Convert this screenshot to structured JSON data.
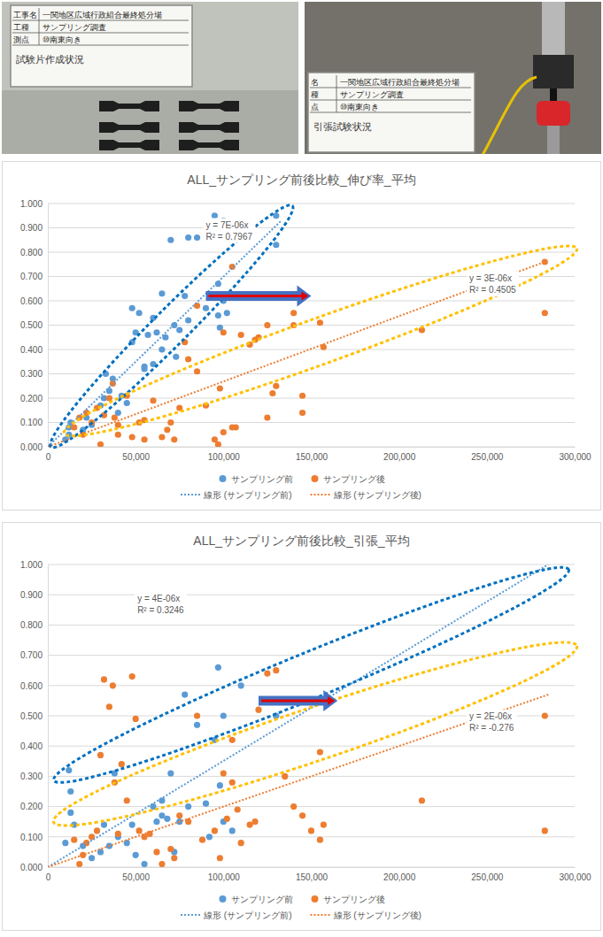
{
  "photos": [
    {
      "board": [
        {
          "label": "工事名",
          "value": "一関地区広域行政組合最終処分場"
        },
        {
          "label": "工種",
          "value": "サンプリング調査"
        },
        {
          "label": "測点",
          "value": "⑩南東向き"
        }
      ],
      "caption": "試験片作成状況"
    },
    {
      "board": [
        {
          "label": "名",
          "value": "一関地区広域行政組合最終処分場"
        },
        {
          "label": "種",
          "value": "サンプリング調査"
        },
        {
          "label": "点",
          "value": "⑩南東向き"
        }
      ],
      "caption": "引張試験状況"
    }
  ],
  "chart_data": [
    {
      "type": "scatter",
      "title": "ALL_サンプリング前後比較_伸び率_平均",
      "xlim": [
        0,
        300000
      ],
      "xticks": [
        0,
        {
          "value": 50000,
          "label": "50,000"
        },
        {
          "value": 100000,
          "label": "100,000"
        },
        {
          "value": 150000,
          "label": "150,000"
        },
        {
          "value": 200000,
          "label": "200,000"
        },
        {
          "value": 250000,
          "label": "250,000"
        },
        {
          "value": 300000,
          "label": "300,000"
        }
      ],
      "ylim": [
        0,
        1
      ],
      "yticks": [
        {
          "value": 0,
          "label": "0.000"
        },
        {
          "value": 0.1,
          "label": "0.100"
        },
        {
          "value": 0.2,
          "label": "0.200"
        },
        {
          "value": 0.3,
          "label": "0.300"
        },
        {
          "value": 0.4,
          "label": "0.400"
        },
        {
          "value": 0.5,
          "label": "0.500"
        },
        {
          "value": 0.6,
          "label": "0.600"
        },
        {
          "value": 0.7,
          "label": "0.700"
        },
        {
          "value": 0.8,
          "label": "0.800"
        },
        {
          "value": 0.9,
          "label": "0.900"
        },
        {
          "value": 1,
          "label": "1.000"
        }
      ],
      "grid": "y",
      "legend": "bottom",
      "series": [
        {
          "name": "サンプリング前",
          "type": "scatter",
          "marker": "circle",
          "color": "#5B9BD5",
          "x": [
            10000,
            12000,
            12000,
            13000,
            20000,
            22000,
            25000,
            30000,
            32000,
            33000,
            35000,
            37000,
            40000,
            42000,
            45000,
            48000,
            48000,
            50000,
            52000,
            55000,
            55000,
            57000,
            60000,
            60000,
            62000,
            65000,
            65000,
            67000,
            70000,
            72000,
            73000,
            75000,
            78000,
            80000,
            80000,
            85000,
            90000,
            92000,
            95000,
            97000,
            97000,
            98000,
            100000,
            100000,
            102000,
            105000,
            110000,
            130000,
            130000
          ],
          "values": [
            0.03,
            0.05,
            0.08,
            0.1,
            0.07,
            0.12,
            0.09,
            0.17,
            0.2,
            0.3,
            0.23,
            0.28,
            0.14,
            0.21,
            0.18,
            0.43,
            0.57,
            0.47,
            0.55,
            0.33,
            0.32,
            0.46,
            0.53,
            0.34,
            0.47,
            0.63,
            0.4,
            0.45,
            0.85,
            0.5,
            0.37,
            0.48,
            0.62,
            0.52,
            0.86,
            0.86,
            0.57,
            0.91,
            0.95,
            0.67,
            0.54,
            0.49,
            0.93,
            0.6,
            0.55,
            0.9,
            0.88,
            0.95,
            0.83
          ]
        },
        {
          "name": "サンプリング後",
          "type": "scatter",
          "marker": "circle",
          "color": "#ED7D31",
          "x": [
            15000,
            18000,
            20000,
            22000,
            25000,
            28000,
            30000,
            32000,
            35000,
            37000,
            38000,
            40000,
            40000,
            45000,
            48000,
            52000,
            55000,
            55000,
            60000,
            65000,
            68000,
            70000,
            72000,
            75000,
            78000,
            80000,
            85000,
            85000,
            90000,
            95000,
            97000,
            98000,
            100000,
            100000,
            105000,
            105000,
            107000,
            110000,
            115000,
            118000,
            120000,
            125000,
            125000,
            128000,
            130000,
            140000,
            140000,
            145000,
            145000,
            155000,
            157000,
            213000,
            283000,
            283000
          ],
          "values": [
            0.08,
            0.12,
            0.05,
            0.14,
            0.1,
            0.16,
            0.01,
            0.13,
            0.2,
            0.26,
            0.12,
            0.09,
            0.05,
            0.21,
            0.04,
            0.1,
            0.11,
            0.03,
            0.19,
            0.04,
            0.07,
            0.1,
            0.03,
            0.16,
            0.43,
            0.36,
            0.31,
            0.58,
            0.17,
            0.03,
            0.01,
            0.24,
            0.47,
            0.06,
            0.08,
            0.74,
            0.08,
            0.46,
            0.42,
            0.44,
            0.45,
            0.12,
            0.5,
            0.22,
            0.25,
            0.5,
            0.55,
            0.14,
            0.21,
            0.51,
            0.41,
            0.48,
            0.76,
            0.55
          ]
        },
        {
          "name": "線形 (サンプリング前)",
          "type": "line",
          "line_style": "dotted",
          "color": "#5B9BD5",
          "x": [
            0,
            133000
          ],
          "values": [
            0,
            0.93
          ]
        },
        {
          "name": "線形 (サンプリング後)",
          "type": "line",
          "line_style": "dotted",
          "color": "#ED7D31",
          "x": [
            0,
            283000
          ],
          "values": [
            0,
            0.76
          ]
        }
      ],
      "annotations": [
        [
          "y = 7E-06x",
          "R² = 0.7967"
        ],
        [
          "y = 3E-06x",
          "R² = 0.4505"
        ]
      ]
    },
    {
      "type": "scatter",
      "title": "ALL_サンプリング前後比較_引張_平均",
      "xlim": [
        0,
        300000
      ],
      "xticks": [
        0,
        {
          "value": 50000,
          "label": "50,000"
        },
        {
          "value": 100000,
          "label": "100,000"
        },
        {
          "value": 150000,
          "label": "150,000"
        },
        {
          "value": 200000,
          "label": "200,000"
        },
        {
          "value": 250000,
          "label": "250,000"
        },
        {
          "value": 300000,
          "label": "300,000"
        }
      ],
      "ylim": [
        0,
        1
      ],
      "yticks": [
        {
          "value": 0,
          "label": "0.000"
        },
        {
          "value": 0.1,
          "label": "0.100"
        },
        {
          "value": 0.2,
          "label": "0.200"
        },
        {
          "value": 0.3,
          "label": "0.300"
        },
        {
          "value": 0.4,
          "label": "0.400"
        },
        {
          "value": 0.5,
          "label": "0.500"
        },
        {
          "value": 0.6,
          "label": "0.600"
        },
        {
          "value": 0.7,
          "label": "0.700"
        },
        {
          "value": 0.8,
          "label": "0.800"
        },
        {
          "value": 0.9,
          "label": "0.900"
        },
        {
          "value": 1,
          "label": "1.000"
        }
      ],
      "grid": "y",
      "legend": "bottom",
      "series": [
        {
          "name": "サンプリング前",
          "type": "scatter",
          "marker": "circle",
          "color": "#5B9BD5",
          "x": [
            10000,
            12000,
            13000,
            13000,
            15000,
            20000,
            25000,
            30000,
            32000,
            35000,
            38000,
            40000,
            45000,
            48000,
            50000,
            55000,
            60000,
            62000,
            65000,
            65000,
            68000,
            70000,
            72000,
            75000,
            78000,
            80000,
            85000,
            90000,
            92000,
            95000,
            97000,
            98000,
            100000,
            100000,
            105000,
            110000,
            130000
          ],
          "values": [
            0.08,
            0.32,
            0.25,
            0.18,
            0.14,
            0.07,
            0.03,
            0.05,
            0.14,
            0.07,
            0.31,
            0.1,
            0.08,
            0.14,
            0.04,
            0.01,
            0.2,
            0.15,
            0.22,
            0.17,
            0.16,
            0.31,
            0.05,
            0.15,
            0.57,
            0.2,
            0.47,
            0.21,
            0.1,
            0.42,
            0.66,
            0.27,
            0.15,
            0.5,
            0.12,
            0.6,
            0.5
          ]
        },
        {
          "name": "サンプリング後",
          "type": "scatter",
          "marker": "circle",
          "color": "#ED7D31",
          "x": [
            15000,
            18000,
            20000,
            22000,
            25000,
            28000,
            30000,
            32000,
            35000,
            37000,
            38000,
            40000,
            42000,
            45000,
            48000,
            50000,
            52000,
            55000,
            58000,
            62000,
            65000,
            70000,
            72000,
            75000,
            80000,
            85000,
            88000,
            95000,
            98000,
            100000,
            102000,
            105000,
            105000,
            108000,
            110000,
            115000,
            118000,
            120000,
            125000,
            130000,
            135000,
            140000,
            145000,
            150000,
            155000,
            155000,
            157000,
            213000,
            283000,
            283000
          ],
          "values": [
            0.09,
            0.01,
            0.04,
            0.08,
            0.1,
            0.12,
            0.37,
            0.62,
            0.53,
            0.6,
            0.28,
            0.11,
            0.34,
            0.22,
            0.63,
            0.49,
            0.12,
            0.1,
            0.11,
            0.05,
            0.01,
            0.06,
            0.03,
            0.17,
            0.15,
            0.5,
            0.09,
            0.12,
            0.03,
            0.31,
            0.16,
            0.28,
            0.42,
            0.19,
            0.08,
            0.14,
            0.15,
            0.52,
            0.64,
            0.65,
            0.3,
            0.2,
            0.17,
            0.12,
            0.38,
            0.09,
            0.14,
            0.22,
            0.5,
            0.12
          ]
        },
        {
          "name": "線形 (サンプリング前)",
          "type": "line",
          "line_style": "dotted",
          "color": "#5B9BD5",
          "x": [
            0,
            285000
          ],
          "values": [
            0,
            1
          ]
        },
        {
          "name": "線形 (サンプリング後)",
          "type": "line",
          "line_style": "dotted",
          "color": "#ED7D31",
          "x": [
            0,
            285000
          ],
          "values": [
            0,
            0.57
          ]
        }
      ],
      "annotations": [
        [
          "y = 4E-06x",
          "R² = 0.3246"
        ],
        [
          "y = 2E-06x",
          "R² = -0.276"
        ]
      ]
    }
  ]
}
